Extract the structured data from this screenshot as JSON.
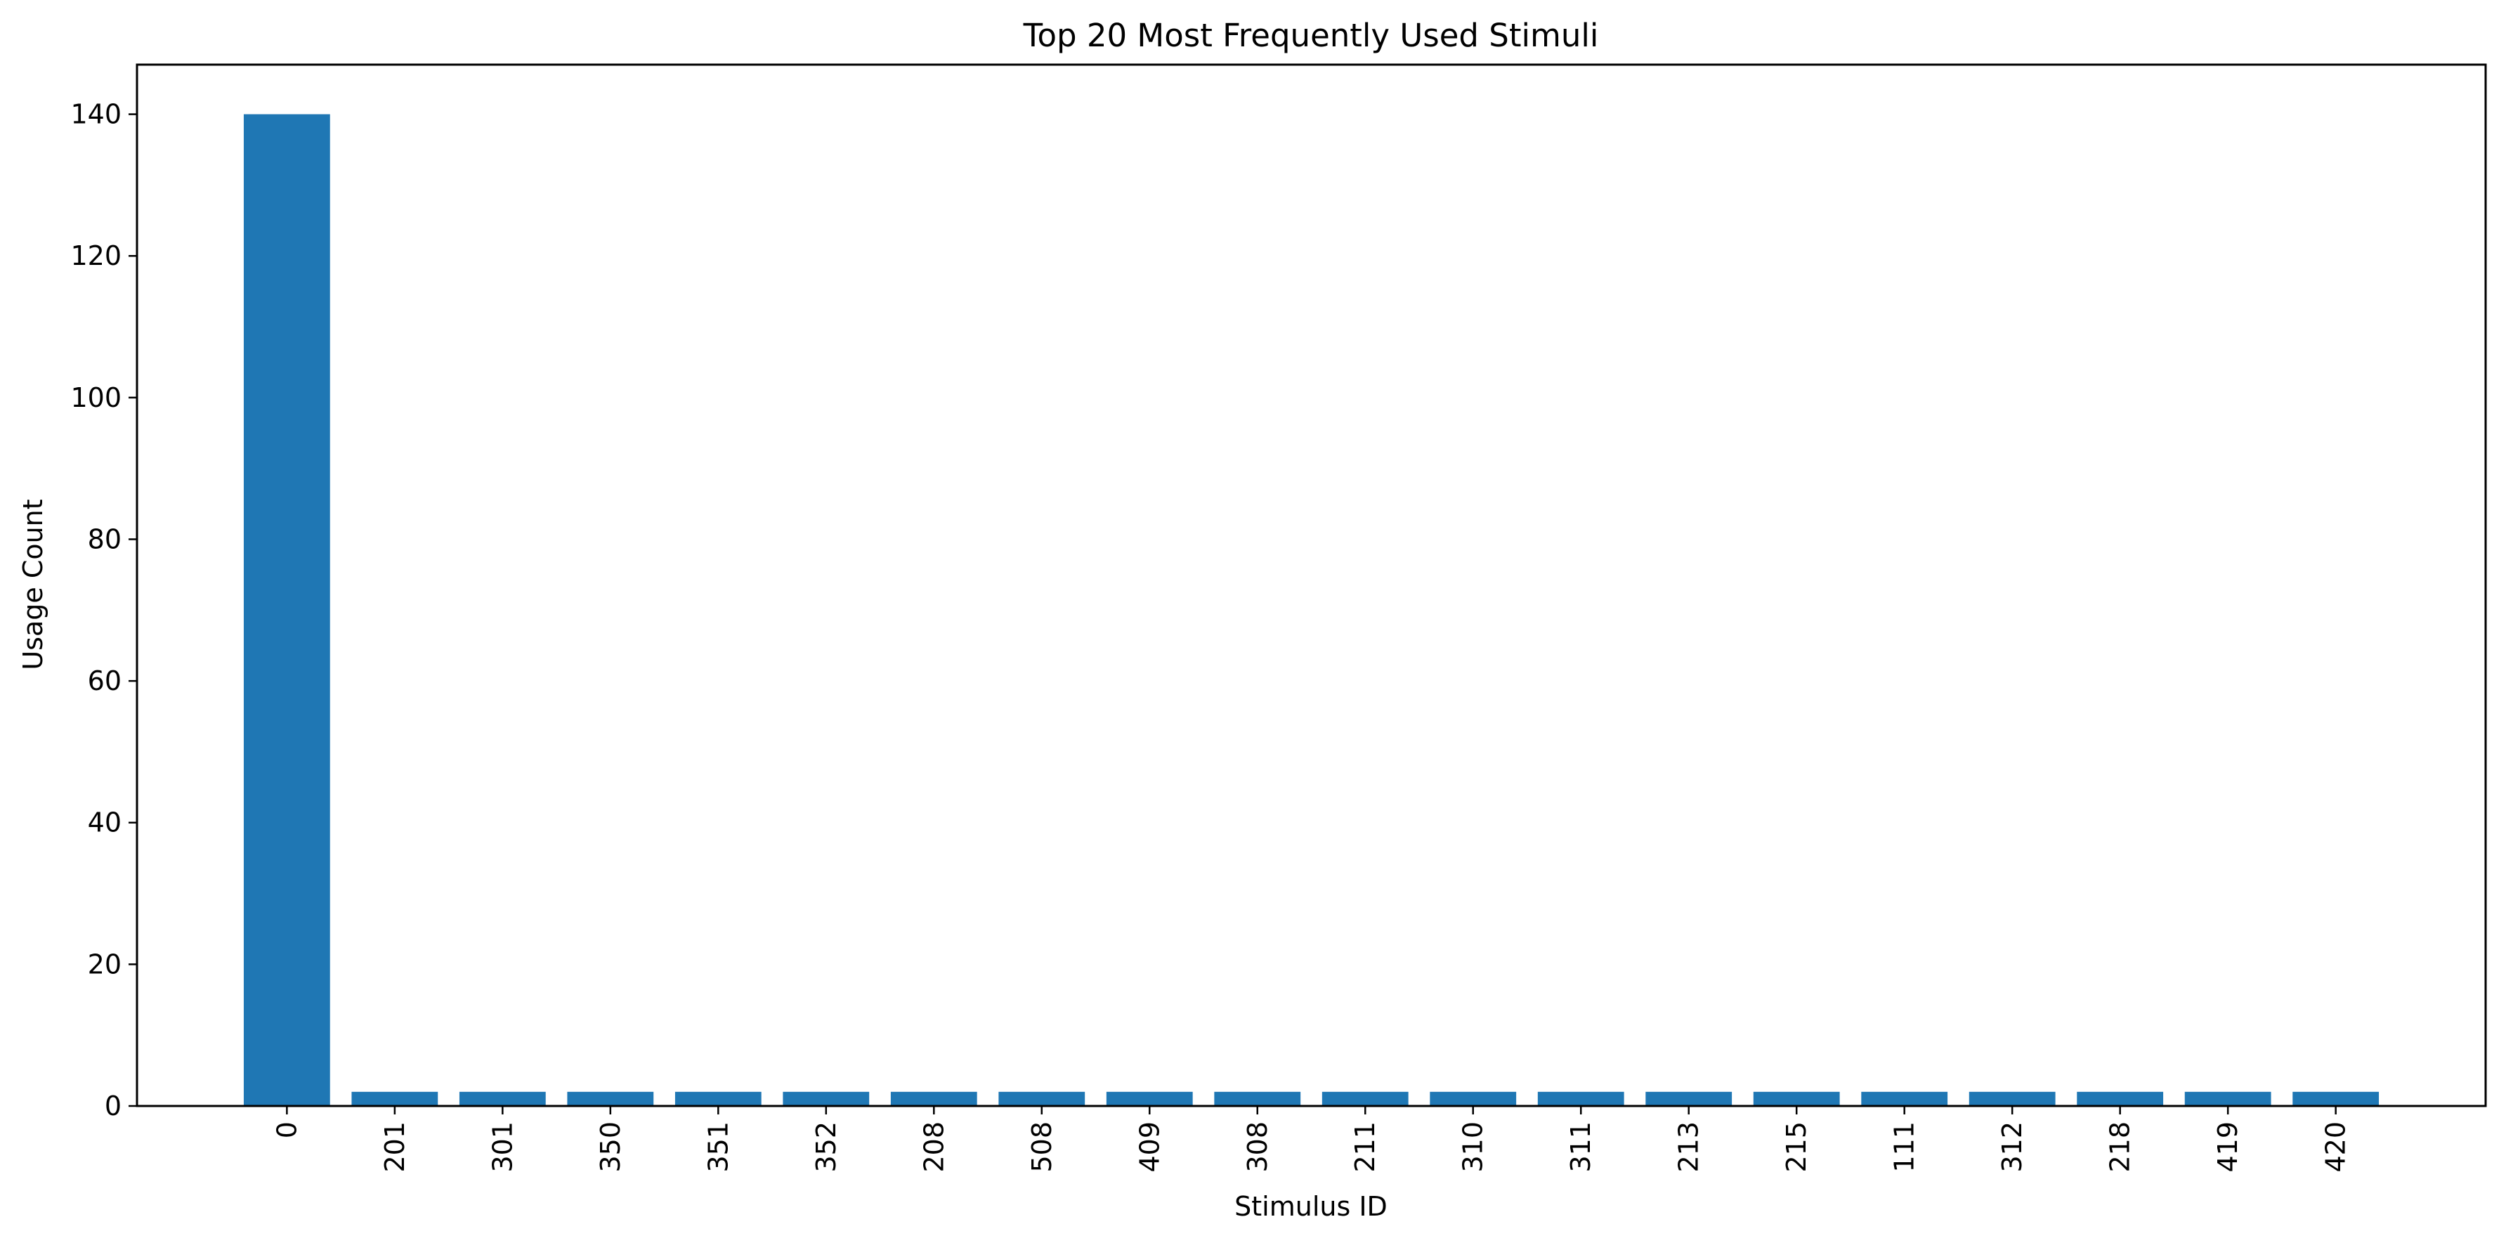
{
  "chart_data": {
    "type": "bar",
    "title": "Top 20 Most Frequently Used Stimuli",
    "xlabel": "Stimulus ID",
    "ylabel": "Usage Count",
    "categories": [
      "0",
      "201",
      "301",
      "350",
      "351",
      "352",
      "208",
      "508",
      "409",
      "308",
      "211",
      "310",
      "311",
      "213",
      "215",
      "111",
      "312",
      "218",
      "419",
      "420"
    ],
    "values": [
      140,
      2,
      2,
      2,
      2,
      2,
      2,
      2,
      2,
      2,
      2,
      2,
      2,
      2,
      2,
      2,
      2,
      2,
      2,
      2
    ],
    "ylim": [
      0,
      147
    ],
    "yticks": [
      0,
      20,
      40,
      60,
      80,
      100,
      120,
      140
    ],
    "bar_color": "#1f77b4",
    "grid": false,
    "x_tick_rotation": "vertical"
  }
}
